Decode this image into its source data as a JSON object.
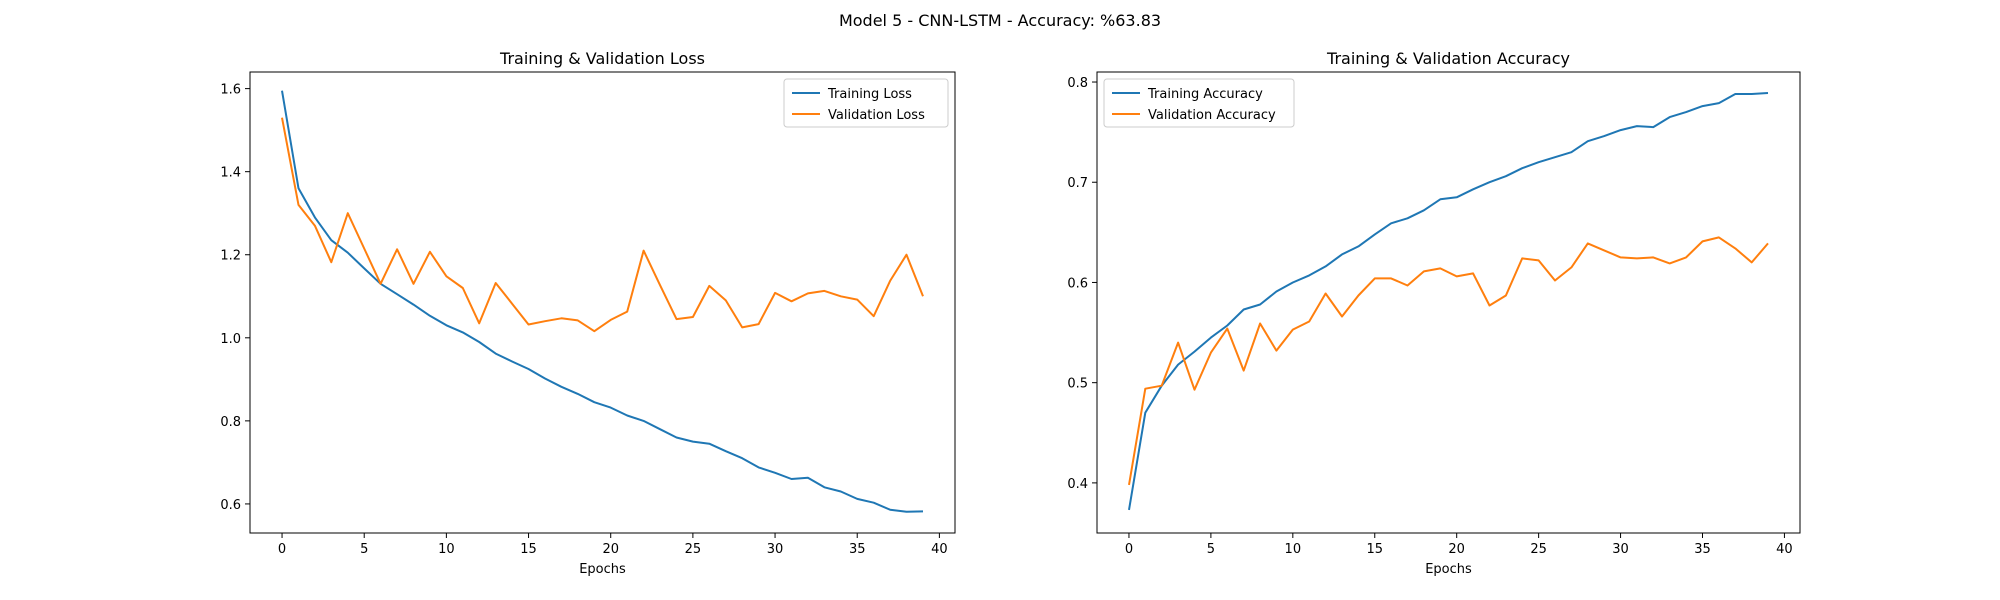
{
  "figure": {
    "suptitle": "Model 5 - CNN-LSTM - Accuracy: %63.83"
  },
  "colors": {
    "series_1": "#1f77b4",
    "series_2": "#ff7f0e",
    "axes": "#000000",
    "legend_border": "#cccccc"
  },
  "chart_data": [
    {
      "type": "line",
      "title": "Training & Validation Loss",
      "xlabel": "Epochs",
      "ylabel": "",
      "xlim": [
        -1.95,
        40.95
      ],
      "ylim": [
        0.53,
        1.64
      ],
      "xticks": [
        0,
        5,
        10,
        15,
        20,
        25,
        30,
        35,
        40
      ],
      "yticks": [
        0.6,
        0.8,
        1.0,
        1.2,
        1.4,
        1.6
      ],
      "ytick_labels": [
        "0.6",
        "0.8",
        "1.0",
        "1.2",
        "1.4",
        "1.6"
      ],
      "grid": false,
      "legend_position": "top-right",
      "x": [
        0,
        1,
        2,
        3,
        4,
        5,
        6,
        7,
        8,
        9,
        10,
        11,
        12,
        13,
        14,
        15,
        16,
        17,
        18,
        19,
        20,
        21,
        22,
        23,
        24,
        25,
        26,
        27,
        28,
        29,
        30,
        31,
        32,
        33,
        34,
        35,
        36,
        37,
        38,
        39
      ],
      "series": [
        {
          "name": "Training Loss",
          "values": [
            1.595,
            1.36,
            1.29,
            1.235,
            1.205,
            1.167,
            1.13,
            1.105,
            1.08,
            1.053,
            1.03,
            1.013,
            0.99,
            0.962,
            0.943,
            0.925,
            0.902,
            0.882,
            0.865,
            0.845,
            0.832,
            0.813,
            0.8,
            0.78,
            0.76,
            0.75,
            0.745,
            0.727,
            0.71,
            0.688,
            0.675,
            0.66,
            0.663,
            0.64,
            0.63,
            0.612,
            0.603,
            0.586,
            0.581,
            0.582
          ]
        },
        {
          "name": "Validation Loss",
          "values": [
            1.53,
            1.32,
            1.27,
            1.182,
            1.3,
            1.215,
            1.13,
            1.213,
            1.13,
            1.207,
            1.148,
            1.12,
            1.035,
            1.132,
            1.082,
            1.032,
            1.04,
            1.047,
            1.042,
            1.016,
            1.043,
            1.063,
            1.21,
            1.127,
            1.045,
            1.05,
            1.125,
            1.09,
            1.025,
            1.033,
            1.108,
            1.088,
            1.107,
            1.113,
            1.1,
            1.092,
            1.052,
            1.137,
            1.2,
            1.1
          ]
        }
      ]
    },
    {
      "type": "line",
      "title": "Training & Validation Accuracy",
      "xlabel": "Epochs",
      "ylabel": "",
      "xlim": [
        -1.95,
        40.95
      ],
      "ylim": [
        0.35,
        0.81
      ],
      "xticks": [
        0,
        5,
        10,
        15,
        20,
        25,
        30,
        35,
        40
      ],
      "yticks": [
        0.4,
        0.5,
        0.6,
        0.7,
        0.8
      ],
      "ytick_labels": [
        "0.4",
        "0.5",
        "0.6",
        "0.7",
        "0.8"
      ],
      "grid": false,
      "legend_position": "top-left",
      "x": [
        0,
        1,
        2,
        3,
        4,
        5,
        6,
        7,
        8,
        9,
        10,
        11,
        12,
        13,
        14,
        15,
        16,
        17,
        18,
        19,
        20,
        21,
        22,
        23,
        24,
        25,
        26,
        27,
        28,
        29,
        30,
        31,
        32,
        33,
        34,
        35,
        36,
        37,
        38,
        39
      ],
      "series": [
        {
          "name": "Training Accuracy",
          "values": [
            0.373,
            0.47,
            0.497,
            0.518,
            0.531,
            0.545,
            0.557,
            0.573,
            0.578,
            0.591,
            0.6,
            0.607,
            0.616,
            0.628,
            0.636,
            0.648,
            0.659,
            0.664,
            0.672,
            0.683,
            0.685,
            0.693,
            0.7,
            0.706,
            0.714,
            0.72,
            0.725,
            0.73,
            0.741,
            0.746,
            0.752,
            0.756,
            0.755,
            0.765,
            0.77,
            0.776,
            0.779,
            0.788,
            0.788,
            0.789
          ]
        },
        {
          "name": "Validation Accuracy",
          "values": [
            0.398,
            0.494,
            0.497,
            0.54,
            0.493,
            0.53,
            0.554,
            0.512,
            0.559,
            0.532,
            0.553,
            0.561,
            0.589,
            0.566,
            0.587,
            0.604,
            0.604,
            0.597,
            0.611,
            0.614,
            0.606,
            0.609,
            0.577,
            0.587,
            0.624,
            0.622,
            0.602,
            0.615,
            0.639,
            0.632,
            0.625,
            0.624,
            0.625,
            0.619,
            0.625,
            0.641,
            0.645,
            0.634,
            0.62,
            0.639
          ]
        }
      ]
    }
  ]
}
